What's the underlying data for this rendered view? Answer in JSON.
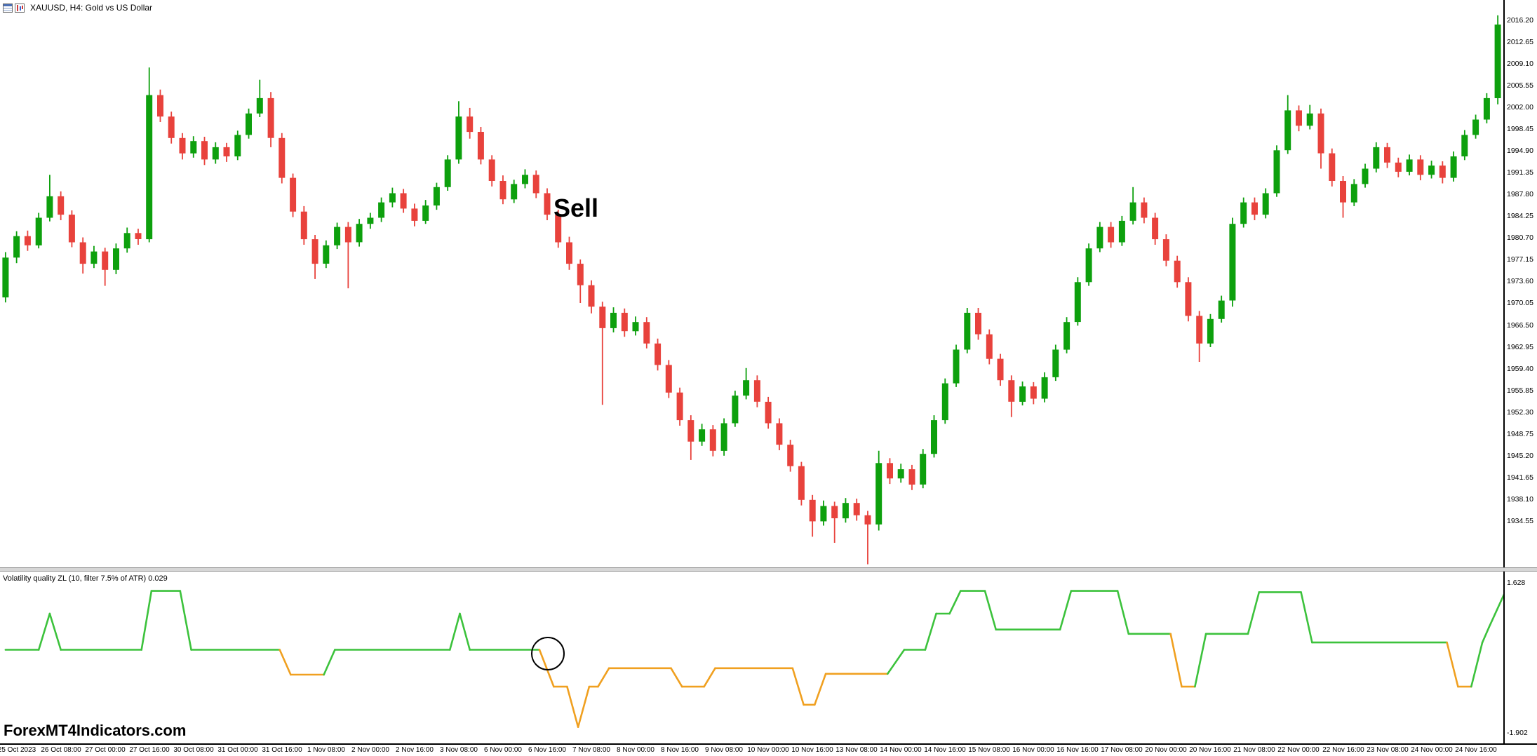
{
  "window": {
    "title": "XAUUSD, H4: Gold vs US Dollar"
  },
  "annotations": {
    "sell_label": "Sell",
    "watermark": "ForexMT4Indicators.com",
    "signal_circle": true
  },
  "indicator": {
    "label": "Volatility quality ZL (10, filter 7.5% of ATR) 0.029",
    "axis_labels": [
      "1.628",
      "-1.902"
    ],
    "ylim": [
      -2.1,
      1.9
    ],
    "colors": {
      "up": "#3cc23c",
      "down": "#f0a020"
    },
    "points": [
      [
        0,
        0.08
      ],
      [
        3,
        0.08
      ],
      [
        4,
        0.92
      ],
      [
        5,
        0.08
      ],
      [
        12.3,
        0.08
      ],
      [
        13.2,
        1.45
      ],
      [
        15.8,
        1.45
      ],
      [
        16.8,
        0.08
      ],
      [
        24.8,
        0.08
      ],
      [
        25.8,
        -0.5
      ],
      [
        28.8,
        -0.5
      ],
      [
        29.8,
        0.08
      ],
      [
        40.2,
        0.08
      ],
      [
        41.1,
        0.92
      ],
      [
        42,
        0.08
      ],
      [
        48.3,
        0.08
      ],
      [
        49.6,
        -0.78
      ],
      [
        50.8,
        -0.78
      ],
      [
        51.8,
        -1.72
      ],
      [
        52.8,
        -0.78
      ],
      [
        53.6,
        -0.78
      ],
      [
        54.6,
        -0.35
      ],
      [
        60.2,
        -0.35
      ],
      [
        61.2,
        -0.78
      ],
      [
        63.2,
        -0.78
      ],
      [
        64.2,
        -0.35
      ],
      [
        71.2,
        -0.35
      ],
      [
        72.2,
        -1.2
      ],
      [
        73.2,
        -1.2
      ],
      [
        74.2,
        -0.48
      ],
      [
        79.8,
        -0.48
      ],
      [
        81.3,
        0.08
      ],
      [
        83.2,
        0.08
      ],
      [
        84.2,
        0.92
      ],
      [
        85.4,
        0.92
      ],
      [
        86.4,
        1.45
      ],
      [
        88.6,
        1.45
      ],
      [
        89.6,
        0.55
      ],
      [
        95.4,
        0.55
      ],
      [
        96.4,
        1.45
      ],
      [
        100.6,
        1.45
      ],
      [
        101.6,
        0.45
      ],
      [
        105.4,
        0.45
      ],
      [
        106.4,
        -0.78
      ],
      [
        107.6,
        -0.78
      ],
      [
        108.6,
        0.45
      ],
      [
        112.4,
        0.45
      ],
      [
        113.4,
        1.42
      ],
      [
        117.2,
        1.42
      ],
      [
        118.2,
        0.25
      ],
      [
        130.4,
        0.25
      ],
      [
        131.4,
        -0.78
      ],
      [
        132.6,
        -0.78
      ],
      [
        133.6,
        0.25
      ],
      [
        134.2,
        0.6
      ],
      [
        135.8,
        1.5
      ]
    ],
    "orange_ranges": [
      [
        24.9,
        28.9
      ],
      [
        48.7,
        80.3
      ],
      [
        105.8,
        107.8
      ],
      [
        130.8,
        132.8
      ]
    ]
  },
  "chart_data": {
    "type": "candlestick",
    "symbol": "XAUUSD",
    "timeframe": "H4",
    "bars_per_label": 4,
    "first_label_bar": 1,
    "price_axis": {
      "ylim": [
        1927.0,
        2019.5
      ],
      "labels": [
        "2016.20",
        "2012.65",
        "2009.10",
        "2005.55",
        "2002.00",
        "1998.45",
        "1994.90",
        "1991.35",
        "1987.80",
        "1984.25",
        "1980.70",
        "1977.15",
        "1973.60",
        "1970.05",
        "1966.50",
        "1962.95",
        "1959.40",
        "1955.85",
        "1952.30",
        "1948.75",
        "1945.20",
        "1941.65",
        "1938.10",
        "1934.55"
      ]
    },
    "colors": {
      "bull": "#0da00d",
      "bear": "#e8423c"
    },
    "time_labels": [
      "25 Oct 2023",
      "26 Oct 08:00",
      "27 Oct 00:00",
      "27 Oct 16:00",
      "30 Oct 08:00",
      "31 Oct 00:00",
      "31 Oct 16:00",
      "1 Nov 08:00",
      "2 Nov 00:00",
      "2 Nov 16:00",
      "3 Nov 08:00",
      "6 Nov 00:00",
      "6 Nov 16:00",
      "7 Nov 08:00",
      "8 Nov 00:00",
      "8 Nov 16:00",
      "9 Nov 08:00",
      "10 Nov 00:00",
      "10 Nov 16:00",
      "13 Nov 08:00",
      "14 Nov 00:00",
      "14 Nov 16:00",
      "15 Nov 08:00",
      "16 Nov 00:00",
      "16 Nov 16:00",
      "17 Nov 08:00",
      "20 Nov 00:00",
      "20 Nov 16:00",
      "21 Nov 08:00",
      "22 Nov 00:00",
      "22 Nov 16:00",
      "23 Nov 08:00",
      "24 Nov 00:00",
      "24 Nov 16:00"
    ],
    "ohlc": [
      [
        1971.0,
        1978.4,
        1970.2,
        1977.5
      ],
      [
        1977.5,
        1981.8,
        1976.6,
        1981.0
      ],
      [
        1981.0,
        1981.9,
        1978.6,
        1979.5
      ],
      [
        1979.5,
        1984.8,
        1979.0,
        1984.0
      ],
      [
        1984.0,
        1991.0,
        1983.4,
        1987.5
      ],
      [
        1987.5,
        1988.3,
        1983.6,
        1984.5
      ],
      [
        1984.5,
        1985.2,
        1979.2,
        1980.0
      ],
      [
        1980.0,
        1980.8,
        1974.9,
        1976.5
      ],
      [
        1976.5,
        1979.4,
        1975.8,
        1978.5
      ],
      [
        1978.5,
        1979.1,
        1972.9,
        1975.5
      ],
      [
        1975.5,
        1979.8,
        1974.8,
        1979.0
      ],
      [
        1979.0,
        1982.4,
        1978.3,
        1981.5
      ],
      [
        1981.5,
        1982.2,
        1979.6,
        1980.5
      ],
      [
        1980.5,
        2008.5,
        1980.0,
        2004.0
      ],
      [
        2004.0,
        2004.9,
        1999.6,
        2000.5
      ],
      [
        2000.5,
        2001.3,
        1996.1,
        1997.0
      ],
      [
        1997.0,
        1997.8,
        1993.5,
        1994.5
      ],
      [
        1994.5,
        1997.3,
        1993.8,
        1996.5
      ],
      [
        1996.5,
        1997.2,
        1992.6,
        1993.5
      ],
      [
        1993.5,
        1996.3,
        1992.8,
        1995.5
      ],
      [
        1995.5,
        1996.2,
        1993.1,
        1994.0
      ],
      [
        1994.0,
        1998.2,
        1993.4,
        1997.5
      ],
      [
        1997.5,
        2001.8,
        1996.9,
        2001.0
      ],
      [
        2001.0,
        2006.5,
        2000.4,
        2003.5
      ],
      [
        2003.5,
        2004.5,
        1995.5,
        1997.0
      ],
      [
        1997.0,
        1997.8,
        1989.6,
        1990.5
      ],
      [
        1990.5,
        1991.2,
        1984.1,
        1985.0
      ],
      [
        1985.0,
        1985.9,
        1979.6,
        1980.5
      ],
      [
        1980.5,
        1981.2,
        1974.0,
        1976.5
      ],
      [
        1976.5,
        1980.3,
        1975.8,
        1979.5
      ],
      [
        1979.5,
        1983.2,
        1978.9,
        1982.5
      ],
      [
        1982.5,
        1983.3,
        1972.5,
        1980.0
      ],
      [
        1980.0,
        1983.8,
        1979.3,
        1983.0
      ],
      [
        1983.0,
        1984.8,
        1982.2,
        1984.0
      ],
      [
        1984.0,
        1987.3,
        1983.3,
        1986.5
      ],
      [
        1986.5,
        1988.9,
        1985.7,
        1988.0
      ],
      [
        1988.0,
        1988.7,
        1984.8,
        1985.5
      ],
      [
        1985.5,
        1986.3,
        1982.6,
        1983.5
      ],
      [
        1983.5,
        1986.9,
        1983.0,
        1986.0
      ],
      [
        1986.0,
        1989.7,
        1985.3,
        1989.0
      ],
      [
        1989.0,
        1994.2,
        1988.4,
        1993.5
      ],
      [
        1993.5,
        2003.0,
        1992.8,
        2000.5
      ],
      [
        2000.5,
        2001.9,
        1996.9,
        1998.0
      ],
      [
        1998.0,
        1998.8,
        1992.7,
        1993.5
      ],
      [
        1993.5,
        1994.2,
        1989.1,
        1990.0
      ],
      [
        1990.0,
        1990.9,
        1986.2,
        1987.0
      ],
      [
        1987.0,
        1990.2,
        1986.4,
        1989.5
      ],
      [
        1989.5,
        1991.9,
        1988.8,
        1991.0
      ],
      [
        1991.0,
        1991.7,
        1987.2,
        1988.0
      ],
      [
        1988.0,
        1988.8,
        1983.6,
        1984.5
      ],
      [
        1984.5,
        1985.3,
        1979.1,
        1980.0
      ],
      [
        1980.0,
        1980.9,
        1975.5,
        1976.5
      ],
      [
        1976.5,
        1977.2,
        1970.1,
        1973.0
      ],
      [
        1973.0,
        1973.8,
        1968.4,
        1969.5
      ],
      [
        1969.5,
        1970.3,
        1953.5,
        1966.0
      ],
      [
        1966.0,
        1969.4,
        1965.3,
        1968.5
      ],
      [
        1968.5,
        1969.2,
        1964.6,
        1965.5
      ],
      [
        1965.5,
        1967.9,
        1964.8,
        1967.0
      ],
      [
        1967.0,
        1967.8,
        1962.7,
        1963.5
      ],
      [
        1963.5,
        1964.3,
        1959.1,
        1960.0
      ],
      [
        1960.0,
        1960.8,
        1954.6,
        1955.5
      ],
      [
        1955.5,
        1956.3,
        1950.1,
        1951.0
      ],
      [
        1951.0,
        1951.8,
        1944.5,
        1947.5
      ],
      [
        1947.5,
        1950.4,
        1946.8,
        1949.5
      ],
      [
        1949.5,
        1950.2,
        1945.1,
        1946.0
      ],
      [
        1946.0,
        1951.3,
        1945.2,
        1950.5
      ],
      [
        1950.5,
        1955.8,
        1949.9,
        1955.0
      ],
      [
        1955.0,
        1959.5,
        1954.4,
        1957.5
      ],
      [
        1957.5,
        1958.3,
        1953.1,
        1954.0
      ],
      [
        1954.0,
        1954.8,
        1949.6,
        1950.5
      ],
      [
        1950.5,
        1951.3,
        1946.1,
        1947.0
      ],
      [
        1947.0,
        1947.8,
        1942.6,
        1943.5
      ],
      [
        1943.5,
        1944.2,
        1937.1,
        1938.0
      ],
      [
        1938.0,
        1938.8,
        1932.0,
        1934.5
      ],
      [
        1934.5,
        1937.9,
        1933.8,
        1937.0
      ],
      [
        1937.0,
        1937.7,
        1931.0,
        1935.0
      ],
      [
        1935.0,
        1938.3,
        1934.3,
        1937.5
      ],
      [
        1937.5,
        1938.2,
        1934.6,
        1935.5
      ],
      [
        1935.5,
        1936.2,
        1927.5,
        1934.0
      ],
      [
        1934.0,
        1946.0,
        1933.0,
        1944.0
      ],
      [
        1944.0,
        1944.8,
        1940.6,
        1941.5
      ],
      [
        1941.5,
        1943.9,
        1940.8,
        1943.0
      ],
      [
        1943.0,
        1943.7,
        1939.6,
        1940.5
      ],
      [
        1940.5,
        1946.3,
        1939.9,
        1945.5
      ],
      [
        1945.5,
        1951.8,
        1944.9,
        1951.0
      ],
      [
        1951.0,
        1957.8,
        1950.4,
        1957.0
      ],
      [
        1957.0,
        1963.3,
        1956.4,
        1962.5
      ],
      [
        1962.5,
        1969.3,
        1961.9,
        1968.5
      ],
      [
        1968.5,
        1969.3,
        1964.1,
        1965.0
      ],
      [
        1965.0,
        1965.8,
        1960.1,
        1961.0
      ],
      [
        1961.0,
        1961.8,
        1956.6,
        1957.5
      ],
      [
        1957.5,
        1958.3,
        1951.5,
        1954.0
      ],
      [
        1954.0,
        1957.3,
        1953.4,
        1956.5
      ],
      [
        1956.5,
        1957.2,
        1953.6,
        1954.5
      ],
      [
        1954.5,
        1958.8,
        1953.9,
        1958.0
      ],
      [
        1958.0,
        1963.3,
        1957.4,
        1962.5
      ],
      [
        1962.5,
        1967.8,
        1961.9,
        1967.0
      ],
      [
        1967.0,
        1974.3,
        1966.4,
        1973.5
      ],
      [
        1973.5,
        1979.8,
        1972.9,
        1979.0
      ],
      [
        1979.0,
        1983.3,
        1978.4,
        1982.5
      ],
      [
        1982.5,
        1983.3,
        1979.1,
        1980.0
      ],
      [
        1980.0,
        1984.3,
        1979.4,
        1983.5
      ],
      [
        1983.5,
        1989.0,
        1982.9,
        1986.5
      ],
      [
        1986.5,
        1987.3,
        1983.1,
        1984.0
      ],
      [
        1984.0,
        1984.8,
        1979.6,
        1980.5
      ],
      [
        1980.5,
        1981.3,
        1976.1,
        1977.0
      ],
      [
        1977.0,
        1977.8,
        1972.6,
        1973.5
      ],
      [
        1973.5,
        1974.3,
        1967.1,
        1968.0
      ],
      [
        1968.0,
        1968.8,
        1960.5,
        1963.5
      ],
      [
        1963.5,
        1968.3,
        1962.9,
        1967.5
      ],
      [
        1967.5,
        1971.3,
        1966.9,
        1970.5
      ],
      [
        1970.5,
        1984.0,
        1969.5,
        1983.0
      ],
      [
        1983.0,
        1987.3,
        1982.4,
        1986.5
      ],
      [
        1986.5,
        1987.3,
        1983.6,
        1984.5
      ],
      [
        1984.5,
        1988.8,
        1983.9,
        1988.0
      ],
      [
        1988.0,
        1995.8,
        1987.4,
        1995.0
      ],
      [
        1995.0,
        2004.0,
        1994.4,
        2001.5
      ],
      [
        2001.5,
        2002.3,
        1998.1,
        1999.0
      ],
      [
        1999.0,
        2002.4,
        1998.4,
        2001.0
      ],
      [
        2001.0,
        2001.8,
        1992.0,
        1994.5
      ],
      [
        1994.5,
        1995.3,
        1989.1,
        1990.0
      ],
      [
        1990.0,
        1990.8,
        1984.0,
        1986.5
      ],
      [
        1986.5,
        1990.3,
        1985.9,
        1989.5
      ],
      [
        1989.5,
        1992.8,
        1988.9,
        1992.0
      ],
      [
        1992.0,
        1996.3,
        1991.4,
        1995.5
      ],
      [
        1995.5,
        1996.2,
        1992.1,
        1993.0
      ],
      [
        1993.0,
        1993.8,
        1990.6,
        1991.5
      ],
      [
        1991.5,
        1994.3,
        1990.9,
        1993.5
      ],
      [
        1993.5,
        1994.2,
        1990.1,
        1991.0
      ],
      [
        1991.0,
        1993.3,
        1990.4,
        1992.5
      ],
      [
        1992.5,
        1993.2,
        1989.6,
        1990.5
      ],
      [
        1990.5,
        1994.8,
        1989.9,
        1994.0
      ],
      [
        1994.0,
        1998.3,
        1993.4,
        1997.5
      ],
      [
        1997.5,
        2000.8,
        1996.9,
        2000.0
      ],
      [
        2000.0,
        2004.3,
        1999.4,
        2003.5
      ],
      [
        2003.5,
        2017.0,
        2002.5,
        2015.5
      ]
    ]
  }
}
